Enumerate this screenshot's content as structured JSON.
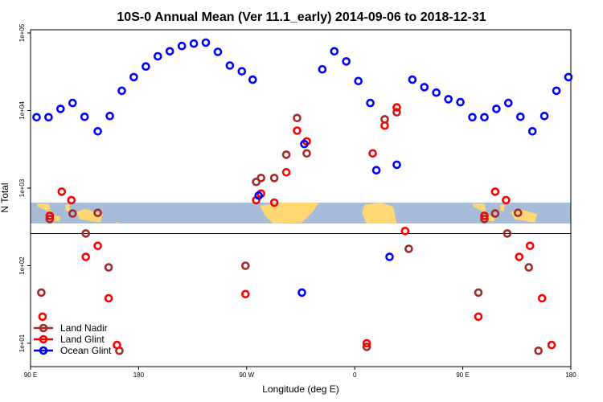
{
  "chart_data": {
    "type": "scatter",
    "title": "10S-0 Annual Mean (Ver 11.1_early)   2014-09-06 to 2018-12-31",
    "xlabel": "Longitude (deg E)",
    "ylabel": "N Total",
    "x_scale": "linear",
    "y_scale": "log",
    "xlim": [
      90,
      540
    ],
    "ylim": [
      5,
      110000
    ],
    "x_ticks": [
      {
        "value": 90,
        "label": "90 E"
      },
      {
        "value": 180,
        "label": "180"
      },
      {
        "value": 270,
        "label": "90 W"
      },
      {
        "value": 360,
        "label": "0"
      },
      {
        "value": 450,
        "label": "90 E"
      },
      {
        "value": 540,
        "label": "180"
      }
    ],
    "y_ticks": [
      {
        "value": 10,
        "label": "1e+01"
      },
      {
        "value": 100,
        "label": "1e+02"
      },
      {
        "value": 1000,
        "label": "1e+03"
      },
      {
        "value": 10000,
        "label": "1e+04"
      },
      {
        "value": 100000,
        "label": "1e+05"
      }
    ],
    "legend_position": "bottom-left",
    "map_band": {
      "y_top": 650,
      "y_bottom": 350
    },
    "colors": {
      "land_nadir": "#a52a2a",
      "land_glint": "#ff0000",
      "ocean_glint": "#0000ff",
      "ocean": "#a7bcd9",
      "land": "#ffd873"
    },
    "series": [
      {
        "name": "Land Nadir",
        "color": "#a52a2a",
        "points": [
          [
            99,
            45
          ],
          [
            106,
            400
          ],
          [
            125,
            470
          ],
          [
            136,
            260
          ],
          [
            146,
            480
          ],
          [
            155,
            95
          ],
          [
            164,
            8
          ],
          [
            269,
            100
          ],
          [
            278,
            1200
          ],
          [
            282,
            1350
          ],
          [
            293,
            1350
          ],
          [
            303,
            2700
          ],
          [
            312,
            8000
          ],
          [
            320,
            2800
          ],
          [
            370,
            9
          ],
          [
            385,
            7700
          ],
          [
            395,
            9500
          ],
          [
            405,
            165
          ],
          [
            463,
            45
          ],
          [
            468,
            400
          ],
          [
            477,
            470
          ],
          [
            487,
            260
          ],
          [
            496,
            480
          ],
          [
            505,
            95
          ],
          [
            513,
            8
          ]
        ]
      },
      {
        "name": "Land Glint",
        "color": "#ff0000",
        "points": [
          [
            100,
            22
          ],
          [
            106,
            440
          ],
          [
            116,
            900
          ],
          [
            124,
            700
          ],
          [
            136,
            130
          ],
          [
            146,
            180
          ],
          [
            155,
            38
          ],
          [
            162,
            9.5
          ],
          [
            269,
            43
          ],
          [
            278,
            700
          ],
          [
            282,
            850
          ],
          [
            293,
            650
          ],
          [
            303,
            1600
          ],
          [
            312,
            5500
          ],
          [
            320,
            4000
          ],
          [
            370,
            10
          ],
          [
            375,
            2800
          ],
          [
            385,
            6400
          ],
          [
            395,
            11000
          ],
          [
            402,
            280
          ],
          [
            463,
            22
          ],
          [
            468,
            440
          ],
          [
            477,
            900
          ],
          [
            486,
            700
          ],
          [
            497,
            130
          ],
          [
            506,
            180
          ],
          [
            516,
            38
          ],
          [
            524,
            9.5
          ]
        ]
      },
      {
        "name": "Ocean Glint",
        "color": "#0000ff",
        "points": [
          [
            95,
            8200
          ],
          [
            105,
            8200
          ],
          [
            115,
            10500
          ],
          [
            125,
            12500
          ],
          [
            135,
            8300
          ],
          [
            146,
            5400
          ],
          [
            156,
            8500
          ],
          [
            166,
            18000
          ],
          [
            176,
            27000
          ],
          [
            186,
            37000
          ],
          [
            196,
            50000
          ],
          [
            206,
            58000
          ],
          [
            216,
            68000
          ],
          [
            226,
            73000
          ],
          [
            236,
            75000
          ],
          [
            246,
            57000
          ],
          [
            256,
            38000
          ],
          [
            266,
            32000
          ],
          [
            275,
            25000
          ],
          [
            280,
            800
          ],
          [
            316,
            45
          ],
          [
            318,
            3700
          ],
          [
            333,
            34000
          ],
          [
            343,
            58000
          ],
          [
            353,
            43000
          ],
          [
            363,
            24000
          ],
          [
            373,
            12500
          ],
          [
            378,
            1700
          ],
          [
            389,
            130
          ],
          [
            395,
            2000
          ],
          [
            408,
            25000
          ],
          [
            418,
            20000
          ],
          [
            428,
            17000
          ],
          [
            438,
            14000
          ],
          [
            448,
            12800
          ],
          [
            458,
            8200
          ],
          [
            468,
            8200
          ],
          [
            478,
            10500
          ],
          [
            488,
            12500
          ],
          [
            498,
            8300
          ],
          [
            508,
            5400
          ],
          [
            518,
            8500
          ],
          [
            528,
            18000
          ],
          [
            538,
            27000
          ]
        ]
      }
    ]
  }
}
